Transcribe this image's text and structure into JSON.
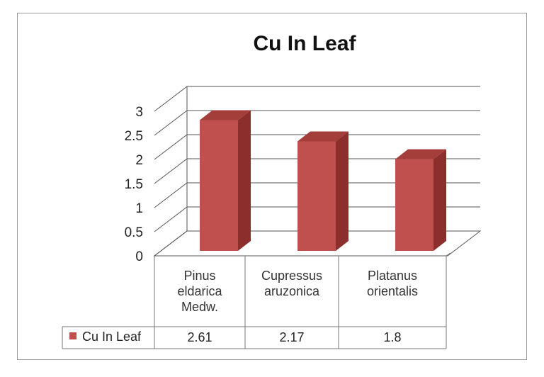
{
  "chart_data": {
    "type": "bar",
    "title": "Cu In Leaf",
    "categories": [
      [
        "Pinus",
        "eldarica",
        "Medw."
      ],
      [
        "Cupressus",
        "aruzonica"
      ],
      [
        "Platanus",
        "orientalis"
      ]
    ],
    "series": [
      {
        "name": "Cu In Leaf",
        "values": [
          2.61,
          2.17,
          1.8
        ],
        "color": "#c0504d",
        "side_color": "#8c2e2b",
        "top_color": "#a33e3b"
      }
    ],
    "ylim": [
      0,
      3
    ],
    "yticks": [
      "0",
      "0.5",
      "1",
      "1.5",
      "2",
      "2.5",
      "3"
    ],
    "grid": true,
    "legend": "data-table",
    "data_table": {
      "legend_label": "Cu In Leaf",
      "values": [
        "2.61",
        "2.17",
        "1.8"
      ]
    }
  }
}
